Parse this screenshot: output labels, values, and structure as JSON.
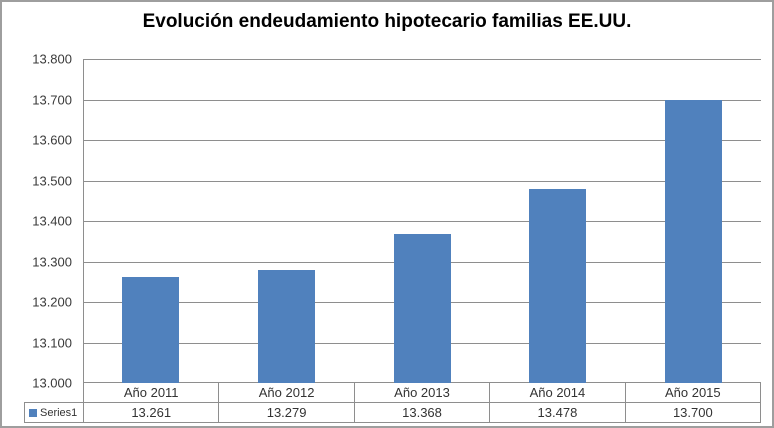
{
  "chart_data": {
    "type": "bar",
    "title": "Evolución endeudamiento hipotecario familias EE.UU.",
    "categories": [
      "Año 2011",
      "Año 2012",
      "Año 2013",
      "Año 2014",
      "Año 2015"
    ],
    "series": [
      {
        "name": "Series1",
        "values": [
          13261,
          13279,
          13368,
          13478,
          13700
        ]
      }
    ],
    "value_display": [
      "13.261",
      "13.279",
      "13.368",
      "13.478",
      "13.700"
    ],
    "y_tick_labels": [
      "13.800",
      "13.700",
      "13.600",
      "13.500",
      "13.400",
      "13.300",
      "13.200",
      "13.100",
      "13.000"
    ],
    "ylim": [
      13000,
      13800
    ],
    "grid": true,
    "legend_position": "data-table-left",
    "data_table_shown": true,
    "bar_color": "#5081BD",
    "grid_color": "#8e8e8e"
  }
}
